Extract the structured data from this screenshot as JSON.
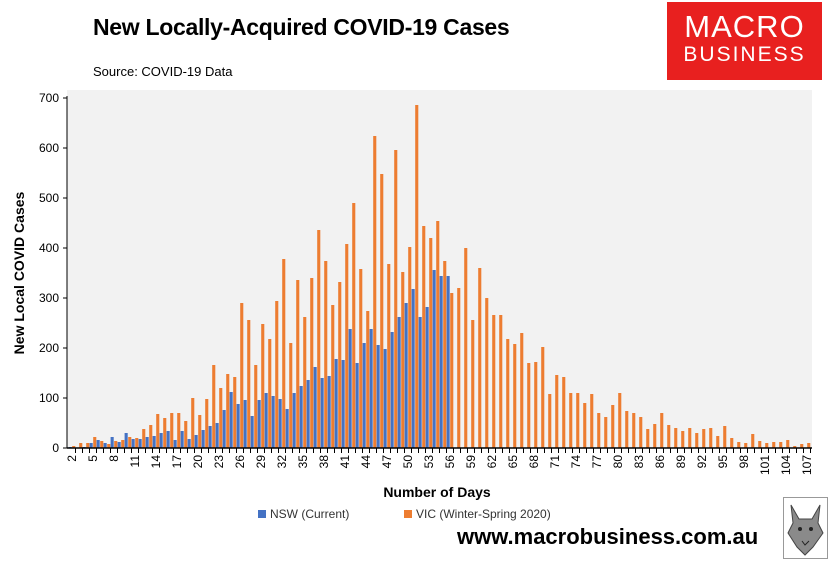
{
  "header": {
    "title": "New Locally-Acquired COVID-19 Cases",
    "source": "Source: COVID-19 Data"
  },
  "logo": {
    "line1": "MACRO",
    "line2": "BUSINESS"
  },
  "footer": {
    "url": "www.macrobusiness.com.au"
  },
  "colors": {
    "nsw": "#4472c4",
    "vic": "#ed7d31",
    "plot_bg": "#f2f2f2",
    "logo_red": "#e8201f"
  },
  "chart_data": {
    "type": "bar",
    "title": "New Locally-Acquired COVID-19 Cases",
    "xlabel": "Number of Days",
    "ylabel": "New Local COVID Cases",
    "ylim": [
      0,
      700
    ],
    "yticks": [
      0,
      100,
      200,
      300,
      400,
      500,
      600,
      700
    ],
    "x_start": 2,
    "x_end": 107,
    "xtick_step": 3,
    "legend_position": "bottom",
    "series": [
      {
        "name": "NSW (Current)",
        "start_day": 2,
        "values": [
          2,
          1,
          2,
          10,
          16,
          10,
          22,
          12,
          30,
          18,
          18,
          22,
          24,
          30,
          34,
          16,
          34,
          18,
          26,
          36,
          44,
          50,
          76,
          112,
          88,
          96,
          64,
          96,
          110,
          104,
          98,
          78,
          110,
          124,
          136,
          162,
          140,
          144,
          178,
          176,
          238,
          170,
          210,
          238,
          206,
          198,
          232,
          262,
          290,
          318,
          262,
          282,
          356,
          344,
          344
        ]
      },
      {
        "name": "VIC (Winter-Spring 2020)",
        "start_day": 2,
        "values": [
          4,
          10,
          10,
          22,
          14,
          8,
          14,
          16,
          22,
          20,
          38,
          46,
          68,
          60,
          70,
          70,
          54,
          100,
          66,
          98,
          166,
          120,
          148,
          142,
          290,
          256,
          166,
          248,
          218,
          294,
          378,
          210,
          336,
          262,
          340,
          436,
          374,
          286,
          332,
          408,
          490,
          358,
          274,
          624,
          548,
          368,
          596,
          352,
          402,
          686,
          444,
          420,
          454,
          374,
          310,
          320,
          400,
          256,
          360,
          300,
          266,
          266,
          218,
          208,
          230,
          170,
          172,
          202,
          108,
          146,
          142,
          110,
          110,
          90,
          108,
          70,
          62,
          86,
          110,
          74,
          70,
          62,
          38,
          48,
          70,
          46,
          40,
          34,
          40,
          30,
          38,
          40,
          24,
          44,
          20,
          12,
          10,
          28,
          14,
          10,
          12,
          12,
          16,
          4,
          8,
          10
        ]
      }
    ]
  }
}
